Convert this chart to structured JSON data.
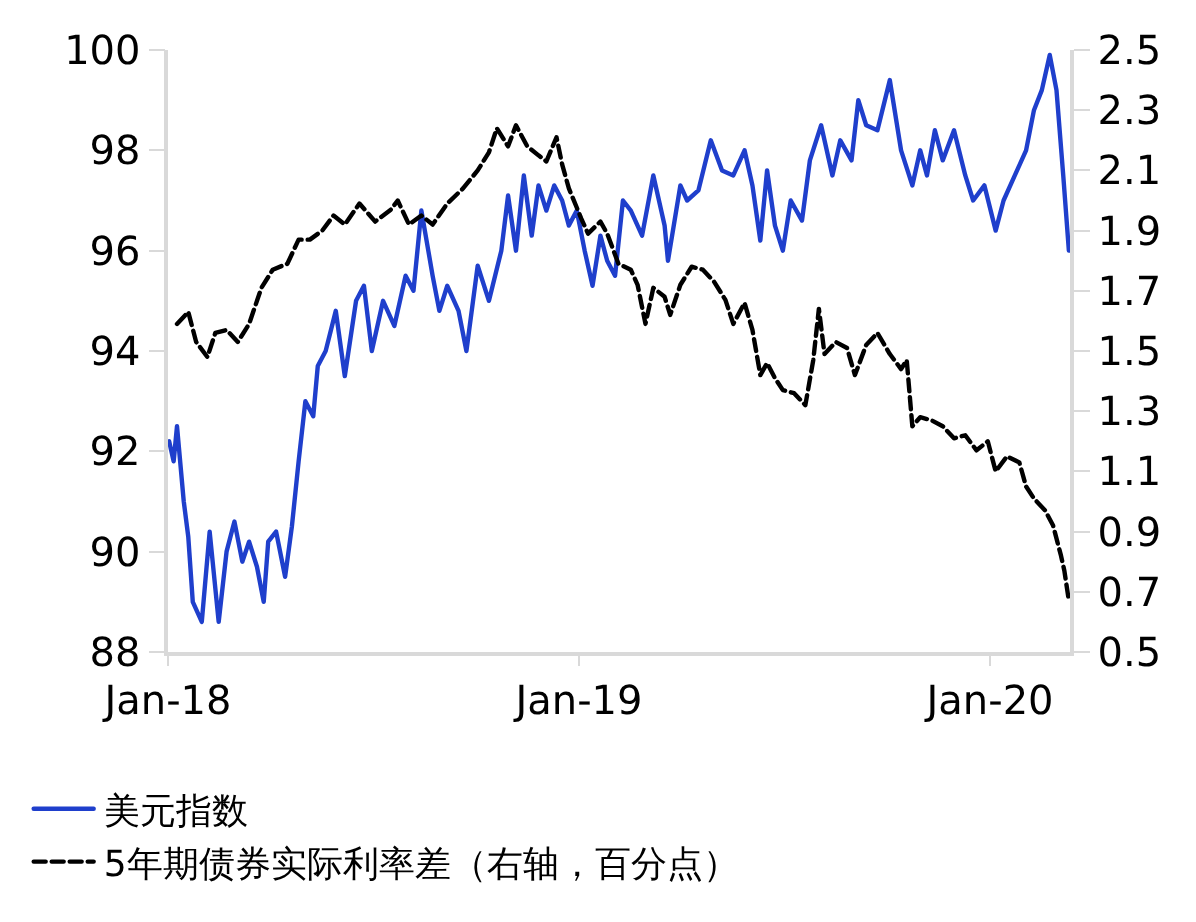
{
  "chart_data": {
    "type": "line",
    "xlim": [
      "2018-01-01",
      "2020-03-12"
    ],
    "xticks": [
      {
        "value": "2018-01-01",
        "label": "Jan-18"
      },
      {
        "value": "2019-01-01",
        "label": "Jan-19"
      },
      {
        "value": "2020-01-01",
        "label": "Jan-20"
      }
    ],
    "ylim": [
      88,
      100
    ],
    "yticks": [
      88,
      90,
      92,
      94,
      96,
      98,
      100
    ],
    "y2lim": [
      0.5,
      2.5
    ],
    "y2ticks": [
      0.5,
      0.7,
      0.9,
      1.1,
      1.3,
      1.5,
      1.7,
      1.9,
      2.1,
      2.3,
      2.5
    ],
    "legend": "bottom",
    "marker": "none",
    "series": [
      {
        "name": "美元指数",
        "color": "#1f3fcc",
        "line_style": "solid",
        "x": [
          "2018-01-02",
          "2018-01-06",
          "2018-01-09",
          "2018-01-15",
          "2018-01-19",
          "2018-01-23",
          "2018-01-31",
          "2018-02-07",
          "2018-02-15",
          "2018-02-22",
          "2018-03-01",
          "2018-03-08",
          "2018-03-14",
          "2018-03-21",
          "2018-03-27",
          "2018-03-31",
          "2018-04-07",
          "2018-04-15",
          "2018-04-21",
          "2018-04-27",
          "2018-05-03",
          "2018-05-10",
          "2018-05-14",
          "2018-05-21",
          "2018-05-30",
          "2018-06-07",
          "2018-06-17",
          "2018-06-24",
          "2018-07-01",
          "2018-07-11",
          "2018-07-21",
          "2018-07-31",
          "2018-08-07",
          "2018-08-14",
          "2018-08-24",
          "2018-08-30",
          "2018-09-06",
          "2018-09-16",
          "2018-09-23",
          "2018-10-03",
          "2018-10-13",
          "2018-10-24",
          "2018-10-30",
          "2018-11-06",
          "2018-11-13",
          "2018-11-20",
          "2018-11-26",
          "2018-12-03",
          "2018-12-10",
          "2018-12-17",
          "2018-12-23",
          "2018-12-30",
          "2019-01-06",
          "2019-01-13",
          "2019-01-20",
          "2019-01-26",
          "2019-02-02",
          "2019-02-09",
          "2019-02-16",
          "2019-02-26",
          "2019-03-08",
          "2019-03-18",
          "2019-03-21",
          "2019-04-01",
          "2019-04-07",
          "2019-04-17",
          "2019-04-28",
          "2019-05-08",
          "2019-05-18",
          "2019-05-28",
          "2019-06-04",
          "2019-06-11",
          "2019-06-17",
          "2019-06-24",
          "2019-07-01",
          "2019-07-08",
          "2019-07-18",
          "2019-07-25",
          "2019-08-04",
          "2019-08-14",
          "2019-08-21",
          "2019-08-31",
          "2019-09-06",
          "2019-09-13",
          "2019-09-23",
          "2019-10-04",
          "2019-10-14",
          "2019-10-24",
          "2019-10-31",
          "2019-11-06",
          "2019-11-13",
          "2019-11-20",
          "2019-11-30",
          "2019-12-10",
          "2019-12-17",
          "2019-12-27",
          "2020-01-06",
          "2020-01-13",
          "2020-01-23",
          "2020-02-02",
          "2020-02-09",
          "2020-02-16",
          "2020-02-23",
          "2020-02-29",
          "2020-03-06",
          "2020-03-11"
        ],
        "values": [
          92.2,
          91.8,
          92.5,
          91,
          90.3,
          89,
          88.6,
          90.4,
          88.6,
          90,
          90.6,
          89.8,
          90.2,
          89.7,
          89,
          90.2,
          90.4,
          89.5,
          90.5,
          91.8,
          93,
          92.7,
          93.7,
          94,
          94.8,
          93.5,
          95,
          95.3,
          94,
          95,
          94.5,
          95.5,
          95.2,
          96.8,
          95.5,
          94.8,
          95.3,
          94.8,
          94,
          95.7,
          95,
          96,
          97.1,
          96,
          97.5,
          96.3,
          97.3,
          96.8,
          97.3,
          97,
          96.5,
          96.8,
          96,
          95.3,
          96.3,
          95.8,
          95.5,
          97,
          96.8,
          96.3,
          97.5,
          96.5,
          95.8,
          97.3,
          97,
          97.2,
          98.2,
          97.6,
          97.5,
          98,
          97.3,
          96.2,
          97.6,
          96.5,
          96,
          97,
          96.6,
          97.8,
          98.5,
          97.5,
          98.2,
          97.8,
          99,
          98.5,
          98.4,
          99.4,
          98,
          97.3,
          98,
          97.5,
          98.4,
          97.8,
          98.4,
          97.5,
          97,
          97.3,
          96.4,
          97,
          97.5,
          98,
          98.8,
          99.2,
          99.9,
          99.2,
          97.5,
          96
        ]
      },
      {
        "name": "5年期债券实际利率差（右轴，百分点）",
        "color": "#000000",
        "line_style": "dashed",
        "axis": "y2",
        "x": [
          "2018-01-09",
          "2018-01-19",
          "2018-01-26",
          "2018-02-05",
          "2018-02-12",
          "2018-02-22",
          "2018-03-04",
          "2018-03-14",
          "2018-03-25",
          "2018-04-04",
          "2018-04-17",
          "2018-04-27",
          "2018-05-07",
          "2018-05-18",
          "2018-05-28",
          "2018-06-07",
          "2018-06-20",
          "2018-07-04",
          "2018-07-18",
          "2018-07-24",
          "2018-08-03",
          "2018-08-14",
          "2018-08-24",
          "2018-09-06",
          "2018-09-20",
          "2018-10-03",
          "2018-10-13",
          "2018-10-20",
          "2018-10-30",
          "2018-11-06",
          "2018-11-16",
          "2018-11-26",
          "2018-12-03",
          "2018-12-12",
          "2018-12-17",
          "2018-12-23",
          "2019-01-03",
          "2019-01-09",
          "2019-01-20",
          "2019-01-26",
          "2019-02-05",
          "2019-02-16",
          "2019-02-22",
          "2019-03-01",
          "2019-03-08",
          "2019-03-18",
          "2019-03-23",
          "2019-04-01",
          "2019-04-11",
          "2019-04-21",
          "2019-05-01",
          "2019-05-11",
          "2019-05-18",
          "2019-05-28",
          "2019-06-04",
          "2019-06-11",
          "2019-06-17",
          "2019-06-24",
          "2019-07-01",
          "2019-07-11",
          "2019-07-21",
          "2019-07-28",
          "2019-08-02",
          "2019-08-07",
          "2019-08-17",
          "2019-08-27",
          "2019-09-03",
          "2019-09-13",
          "2019-09-23",
          "2019-10-04",
          "2019-10-14",
          "2019-10-19",
          "2019-10-24",
          "2019-10-31",
          "2019-11-10",
          "2019-11-20",
          "2019-11-30",
          "2019-12-10",
          "2019-12-20",
          "2019-12-30",
          "2020-01-06",
          "2020-01-16",
          "2020-01-27",
          "2020-02-02",
          "2020-02-09",
          "2020-02-19",
          "2020-02-26",
          "2020-03-04",
          "2020-03-07",
          "2020-03-11"
        ],
        "values": [
          1.59,
          1.63,
          1.53,
          1.48,
          1.56,
          1.57,
          1.53,
          1.59,
          1.71,
          1.77,
          1.79,
          1.87,
          1.87,
          1.9,
          1.95,
          1.92,
          1.99,
          1.93,
          1.97,
          2.0,
          1.92,
          1.95,
          1.92,
          1.99,
          2.04,
          2.1,
          2.16,
          2.24,
          2.18,
          2.25,
          2.18,
          2.15,
          2.13,
          2.21,
          2.12,
          2.04,
          1.94,
          1.89,
          1.93,
          1.89,
          1.79,
          1.77,
          1.72,
          1.59,
          1.71,
          1.68,
          1.62,
          1.72,
          1.78,
          1.77,
          1.73,
          1.67,
          1.59,
          1.66,
          1.57,
          1.42,
          1.46,
          1.41,
          1.37,
          1.36,
          1.32,
          1.47,
          1.64,
          1.49,
          1.53,
          1.51,
          1.42,
          1.52,
          1.56,
          1.49,
          1.44,
          1.47,
          1.25,
          1.28,
          1.27,
          1.25,
          1.21,
          1.22,
          1.17,
          1.2,
          1.1,
          1.15,
          1.13,
          1.05,
          1.01,
          0.97,
          0.92,
          0.82,
          0.77,
          0.67
        ]
      }
    ]
  }
}
